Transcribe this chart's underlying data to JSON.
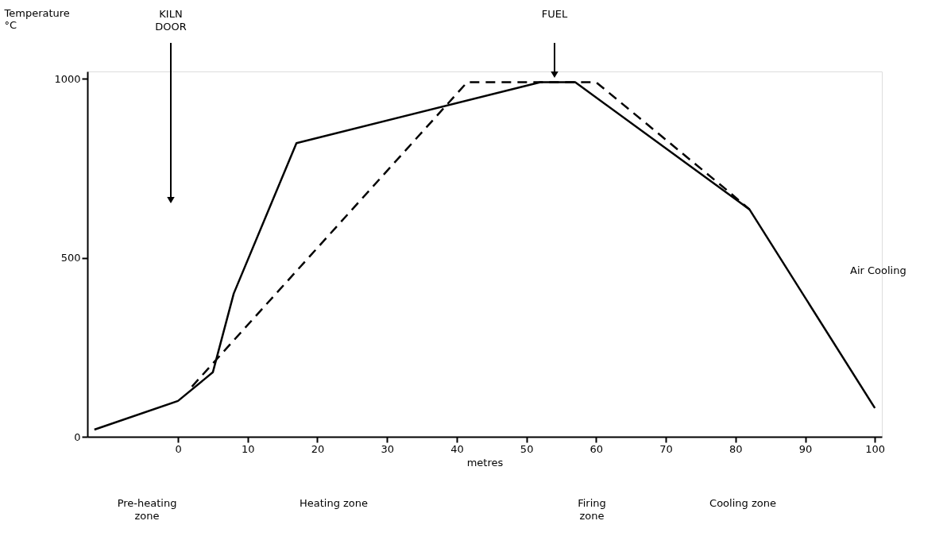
{
  "chart_data": {
    "type": "line",
    "xlabel": "metres",
    "ylabel": "Temperature\n°C",
    "xlim": [
      -13,
      101
    ],
    "ylim": [
      0,
      1020
    ],
    "xticks": [
      0,
      10,
      20,
      30,
      40,
      50,
      60,
      70,
      80,
      90,
      100
    ],
    "yticks": [
      0,
      500,
      1000
    ],
    "grid": false,
    "series": [
      {
        "color": "#000000",
        "line_style": "solid",
        "x": [
          -12,
          0,
          5,
          8,
          17,
          52,
          57,
          82,
          100
        ],
        "values": [
          20,
          100,
          180,
          400,
          820,
          990,
          990,
          635,
          80
        ]
      },
      {
        "color": "#000000",
        "line_style": "dashed",
        "x": [
          2,
          41.5,
          60,
          79,
          82
        ],
        "values": [
          140,
          990,
          990,
          685,
          635
        ]
      }
    ],
    "annotations": [
      "Pre-heating\nzone",
      "Heating  zone",
      "Firing\nzone",
      "Cooling  zone",
      "Air   Cooling",
      "KILN\nDOOR",
      "FUEL"
    ]
  }
}
